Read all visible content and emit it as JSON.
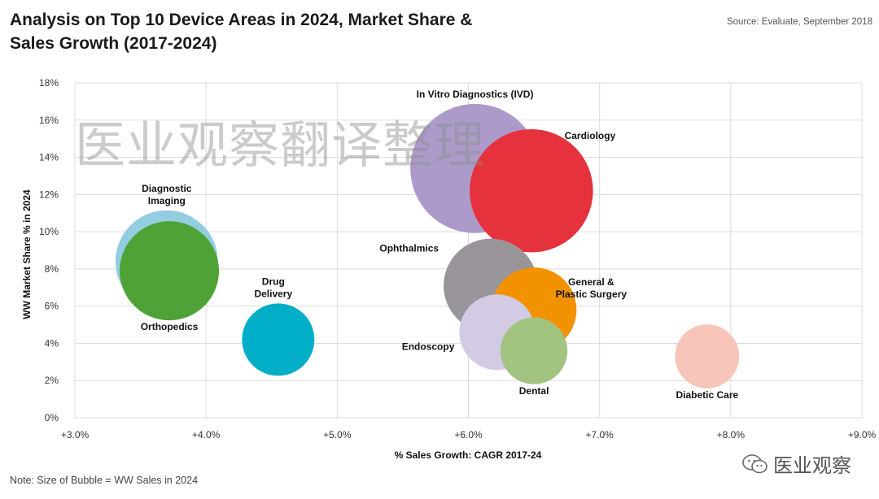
{
  "header": {
    "title": "Analysis on Top 10 Device Areas in 2024, Market Share & Sales Growth (2017-2024)",
    "source": "Source: Evaluate, September 2018"
  },
  "footer": {
    "note": "Note: Size of Bubble = WW Sales in 2024",
    "brand": "医业观察"
  },
  "watermark": "医业观察翻译整理",
  "chart_data": {
    "type": "scatter",
    "title": "Analysis on Top 10 Device Areas in 2024, Market Share & Sales Growth (2017-2024)",
    "xlabel": "% Sales Growth: CAGR 2017-24",
    "ylabel": "WW Market Share % in 2024",
    "xlim": [
      3.0,
      9.0
    ],
    "ylim": [
      0,
      18
    ],
    "x_ticks": [
      "+3.0%",
      "+4.0%",
      "+5.0%",
      "+6.0%",
      "+7.0%",
      "+8.0%",
      "+9.0%"
    ],
    "y_ticks": [
      "0%",
      "2%",
      "4%",
      "6%",
      "8%",
      "10%",
      "12%",
      "14%",
      "16%",
      "18%"
    ],
    "grid": true,
    "bubble_size_note": "Size of Bubble = WW Sales in 2024",
    "points": [
      {
        "name": "In Vitro Diagnostics (IVD)",
        "label_lines": [
          "In Vitro Diagnostics (IVD)"
        ],
        "x": 6.05,
        "y": 13.4,
        "size": 13.4,
        "color": "#ac9bca"
      },
      {
        "name": "Cardiology",
        "label_lines": [
          "Cardiology"
        ],
        "x": 6.48,
        "y": 12.2,
        "size": 12.2,
        "color": "#e5323d"
      },
      {
        "name": "Diagnostic Imaging",
        "label_lines": [
          "Diagnostic",
          "Imaging"
        ],
        "x": 3.7,
        "y": 8.4,
        "size": 8.4,
        "color": "#93cde0"
      },
      {
        "name": "Orthopedics",
        "label_lines": [
          "Orthopedics"
        ],
        "x": 3.72,
        "y": 7.9,
        "size": 7.9,
        "color": "#4ea236"
      },
      {
        "name": "Drug Delivery",
        "label_lines": [
          "Drug",
          "Delivery"
        ],
        "x": 4.55,
        "y": 4.2,
        "size": 4.2,
        "color": "#00aec7"
      },
      {
        "name": "Ophthalmics",
        "label_lines": [
          "Ophthalmics"
        ],
        "x": 6.17,
        "y": 7.1,
        "size": 7.1,
        "color": "#98949a"
      },
      {
        "name": "General & Plastic Surgery",
        "label_lines": [
          "General &",
          "Plastic Surgery"
        ],
        "x": 6.5,
        "y": 5.8,
        "size": 5.8,
        "color": "#f39200"
      },
      {
        "name": "Endoscopy",
        "label_lines": [
          "Endoscopy"
        ],
        "x": 6.22,
        "y": 4.6,
        "size": 4.6,
        "color": "#d3cae3"
      },
      {
        "name": "Dental",
        "label_lines": [
          "Dental"
        ],
        "x": 6.5,
        "y": 3.6,
        "size": 3.6,
        "color": "#a3c381"
      },
      {
        "name": "Diabetic Care",
        "label_lines": [
          "Diabetic Care"
        ],
        "x": 7.82,
        "y": 3.3,
        "size": 3.3,
        "color": "#f7c5b9"
      }
    ]
  }
}
